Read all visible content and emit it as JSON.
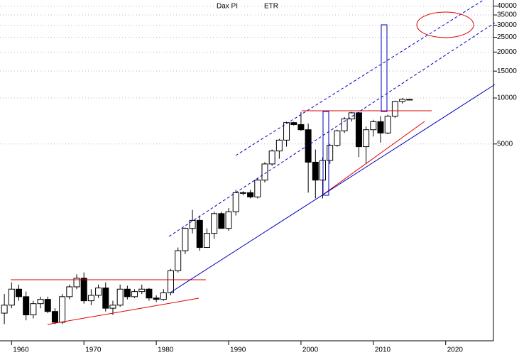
{
  "chart_data": {
    "type": "candlestick",
    "title": "Dax PI",
    "subtitle": "ETR",
    "x": [
      1959,
      1960,
      1961,
      1962,
      1963,
      1964,
      1965,
      1966,
      1967,
      1968,
      1969,
      1970,
      1971,
      1972,
      1973,
      1974,
      1975,
      1976,
      1977,
      1978,
      1979,
      1980,
      1981,
      1982,
      1983,
      1984,
      1985,
      1986,
      1987,
      1988,
      1989,
      1990,
      1991,
      1992,
      1993,
      1994,
      1995,
      1996,
      1997,
      1998,
      1999,
      2000,
      2001,
      2002,
      2003,
      2004,
      2005,
      2006,
      2007,
      2008,
      2009,
      2010,
      2011,
      2012,
      2013,
      2014,
      2015
    ],
    "open": [
      390,
      440,
      560,
      500,
      380,
      450,
      480,
      400,
      340,
      500,
      580,
      660,
      470,
      510,
      570,
      420,
      440,
      560,
      500,
      540,
      560,
      490,
      480,
      530,
      740,
      1000,
      1400,
      1580,
      1050,
      1300,
      1750,
      1400,
      1800,
      2400,
      2400,
      2250,
      2900,
      3700,
      4500,
      5300,
      6900,
      6700,
      6200,
      3800,
      2900,
      3900,
      4900,
      6100,
      7300,
      8000,
      4800,
      6200,
      7000,
      5900,
      7600,
      9500,
      9800
    ],
    "high": [
      520,
      620,
      600,
      540,
      470,
      500,
      500,
      420,
      520,
      600,
      700,
      720,
      560,
      600,
      620,
      470,
      600,
      590,
      560,
      600,
      570,
      510,
      560,
      760,
      1050,
      1420,
      1850,
      1700,
      1400,
      1800,
      1800,
      1900,
      2500,
      2450,
      2500,
      3000,
      3800,
      4600,
      5400,
      7000,
      7000,
      8100,
      6800,
      4600,
      4100,
      5000,
      6200,
      7500,
      8100,
      8100,
      6500,
      7200,
      7600,
      7800,
      9600,
      10000,
      9850
    ],
    "low": [
      330,
      420,
      470,
      350,
      360,
      420,
      390,
      330,
      330,
      480,
      560,
      450,
      440,
      490,
      400,
      380,
      430,
      480,
      490,
      520,
      470,
      460,
      470,
      510,
      720,
      950,
      1300,
      1000,
      1050,
      1200,
      1400,
      1350,
      1700,
      2300,
      2200,
      2200,
      2800,
      3600,
      4000,
      4800,
      6600,
      6100,
      2400,
      2200,
      2200,
      3700,
      4800,
      5900,
      7000,
      4100,
      3700,
      5600,
      5100,
      5800,
      7400,
      9200,
      9750
    ],
    "close": [
      440,
      560,
      500,
      380,
      450,
      480,
      400,
      340,
      500,
      580,
      660,
      470,
      510,
      570,
      420,
      440,
      560,
      500,
      540,
      560,
      490,
      480,
      530,
      740,
      1000,
      1400,
      1580,
      1050,
      1300,
      1750,
      1400,
      1800,
      2400,
      2400,
      2250,
      2900,
      3700,
      4500,
      5300,
      6900,
      6700,
      6200,
      3800,
      2900,
      3900,
      4900,
      6100,
      7300,
      8000,
      4800,
      6200,
      7000,
      5900,
      7600,
      9500,
      9800,
      9800
    ],
    "xlim": [
      1958.4,
      2026.6
    ],
    "xticks": [
      1960,
      1970,
      1980,
      1990,
      2000,
      2010,
      2020
    ],
    "ylim": [
      257,
      43850
    ],
    "log_scale": true,
    "yticks": [
      5000,
      10000,
      15000,
      20000,
      25000,
      30000,
      35000,
      40000
    ],
    "grid": true
  }
}
